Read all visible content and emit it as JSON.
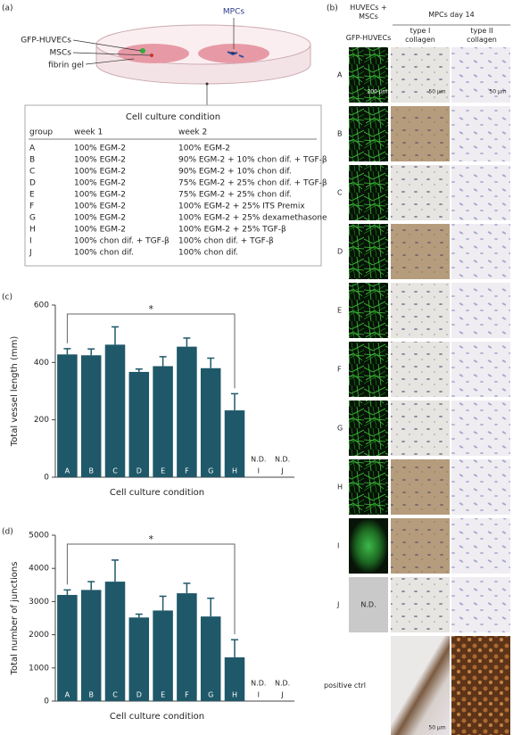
{
  "panel_labels": [
    "(a)",
    "(b)",
    "(c)",
    "(d)"
  ],
  "diagram": {
    "mpcs": "MPCs",
    "huvecs": "GFP-HUVECs",
    "mscs": "MSCs",
    "gel": "fibrin gel"
  },
  "table": {
    "title": "Cell culture condition",
    "header": [
      "group",
      "week 1",
      "week 2"
    ],
    "rows": [
      [
        "A",
        "100% EGM-2",
        "100% EGM-2"
      ],
      [
        "B",
        "100% EGM-2",
        "90% EGM-2 + 10% chon dif. + TGF-β"
      ],
      [
        "C",
        "100% EGM-2",
        "90% EGM-2 + 10% chon dif."
      ],
      [
        "D",
        "100% EGM-2",
        "75% EGM-2 + 25% chon dif. + TGF-β"
      ],
      [
        "E",
        "100% EGM-2",
        "75% EGM-2 + 25% chon dif."
      ],
      [
        "F",
        "100% EGM-2",
        "100% EGM-2 + 25% ITS Premix"
      ],
      [
        "G",
        "100% EGM-2",
        "100% EGM-2 + 25% dexamethasone"
      ],
      [
        "H",
        "100% EGM-2",
        "100% EGM-2 + 25% TGF-β"
      ],
      [
        "I",
        "100% chon dif. + TGF-β",
        "100% chon dif. + TGF-β"
      ],
      [
        "J",
        "100% chon dif.",
        "100% chon dif."
      ]
    ]
  },
  "images": {
    "header_left": "HUVECs + MSCs",
    "header_right": "MPCs day 14",
    "columns": [
      "GFP-HUVECs",
      "type I collagen",
      "type II collagen"
    ],
    "rows": [
      "A",
      "B",
      "C",
      "D",
      "E",
      "F",
      "G",
      "H",
      "I",
      "J",
      "positive ctrl"
    ],
    "not_detected": "N.D.",
    "scale_bars": [
      "200 µm",
      "50 µm"
    ]
  },
  "chart_data": [
    {
      "type": "bar",
      "y_label": "Total vessel length (mm)",
      "x_label": "Cell culture condition",
      "categories": [
        "A",
        "B",
        "C",
        "D",
        "E",
        "F",
        "G",
        "H",
        "I",
        "J"
      ],
      "values": [
        428,
        425,
        462,
        367,
        387,
        455,
        380,
        233,
        null,
        null
      ],
      "errors": [
        20,
        22,
        62,
        10,
        33,
        30,
        35,
        58,
        null,
        null
      ],
      "value_labels": [
        null,
        null,
        null,
        null,
        null,
        null,
        null,
        null,
        "N.D.",
        "N.D."
      ],
      "color": "#1f5869",
      "ylim": [
        0,
        600
      ],
      "yticks": [
        0,
        200,
        400,
        600
      ],
      "significance": {
        "label": "*",
        "between": [
          "A",
          "H"
        ]
      }
    },
    {
      "type": "bar",
      "y_label": "Total number of junctions",
      "x_label": "Cell culture condition",
      "categories": [
        "A",
        "B",
        "C",
        "D",
        "E",
        "F",
        "G",
        "H",
        "I",
        "J"
      ],
      "values": [
        3200,
        3350,
        3600,
        2520,
        2730,
        3250,
        2550,
        1320,
        null,
        null
      ],
      "errors": [
        150,
        250,
        650,
        100,
        430,
        300,
        550,
        530,
        null,
        null
      ],
      "value_labels": [
        null,
        null,
        null,
        null,
        null,
        null,
        null,
        null,
        "N.D.",
        "N.D."
      ],
      "color": "#1f5869",
      "ylim": [
        0,
        5000
      ],
      "yticks": [
        0,
        1000,
        2000,
        3000,
        4000,
        5000
      ],
      "significance": {
        "label": "*",
        "between": [
          "A",
          "H"
        ]
      }
    }
  ]
}
